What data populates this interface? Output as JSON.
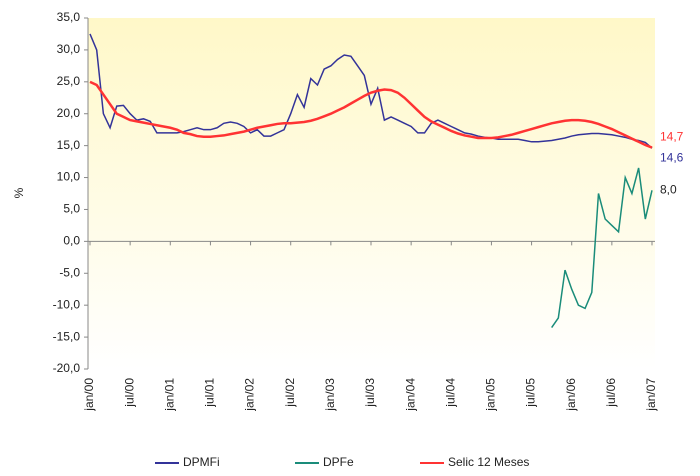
{
  "chart_data": {
    "type": "line",
    "y_label": "%",
    "categories": [
      "jan/00",
      null,
      null,
      null,
      null,
      null,
      "jul/00",
      null,
      null,
      null,
      null,
      null,
      "jan/01",
      null,
      null,
      null,
      null,
      null,
      "jul/01",
      null,
      null,
      null,
      null,
      null,
      "jan/02",
      null,
      null,
      null,
      null,
      null,
      "jul/02",
      null,
      null,
      null,
      null,
      null,
      "jan/03",
      null,
      null,
      null,
      null,
      null,
      "jul/03",
      null,
      null,
      null,
      null,
      null,
      "jan/04",
      null,
      null,
      null,
      null,
      null,
      "jul/04",
      null,
      null,
      null,
      null,
      null,
      "jan/05",
      null,
      null,
      null,
      null,
      null,
      "jul/05",
      null,
      null,
      null,
      null,
      null,
      "jan/06",
      null,
      null,
      null,
      null,
      null,
      "jul/06",
      null,
      null,
      null,
      null,
      null,
      "jan/07"
    ],
    "series": [
      {
        "name": "DPMFi",
        "color": "#333399",
        "values": [
          32.5,
          30,
          20,
          17.8,
          21.2,
          21.3,
          20,
          19,
          19.2,
          18.8,
          17,
          17,
          17,
          17,
          17.2,
          17.5,
          17.8,
          17.5,
          17.5,
          17.8,
          18.5,
          18.7,
          18.5,
          18,
          17,
          17.5,
          16.5,
          16.5,
          17,
          17.5,
          20,
          23,
          21,
          25.5,
          24.5,
          27,
          27.5,
          28.5,
          29.2,
          29,
          27.5,
          26,
          21.5,
          24,
          19,
          19.5,
          19,
          18.5,
          18,
          17,
          17,
          18.5,
          19,
          18.5,
          18,
          17.5,
          17,
          16.8,
          16.5,
          16.3,
          16.2,
          16,
          16,
          16,
          16,
          15.8,
          15.6,
          15.6,
          15.7,
          15.8,
          16,
          16.2,
          16.5,
          16.7,
          16.8,
          16.9,
          16.9,
          16.8,
          16.7,
          16.5,
          16.3,
          16,
          15.8,
          15.5,
          14.6
        ],
        "value_labels": [
          null,
          null,
          null,
          null,
          null,
          null,
          null,
          null,
          null,
          null,
          null,
          null,
          null,
          null,
          null,
          null,
          null,
          null,
          null,
          null,
          null,
          null,
          null,
          null,
          null,
          null,
          null,
          null,
          null,
          null,
          null,
          null,
          null,
          null,
          null,
          null,
          null,
          null,
          null,
          null,
          null,
          null,
          null,
          null,
          null,
          null,
          null,
          null,
          null,
          null,
          null,
          null,
          null,
          null,
          null,
          null,
          null,
          null,
          null,
          null,
          null,
          null,
          null,
          null,
          null,
          null,
          null,
          null,
          null,
          null,
          null,
          null,
          null,
          null,
          null,
          null,
          null,
          null,
          null,
          null,
          null,
          null,
          null,
          null,
          "14,6"
        ]
      },
      {
        "name": "DPFe",
        "color": "#1a8c7a",
        "values": [
          null,
          null,
          null,
          null,
          null,
          null,
          null,
          null,
          null,
          null,
          null,
          null,
          null,
          null,
          null,
          null,
          null,
          null,
          null,
          null,
          null,
          null,
          null,
          null,
          null,
          null,
          null,
          null,
          null,
          null,
          null,
          null,
          null,
          null,
          null,
          null,
          null,
          null,
          null,
          null,
          null,
          null,
          null,
          null,
          null,
          null,
          null,
          null,
          null,
          null,
          null,
          null,
          null,
          null,
          null,
          null,
          null,
          null,
          null,
          null,
          null,
          null,
          null,
          null,
          null,
          null,
          null,
          null,
          null,
          -13.5,
          -12,
          -4.5,
          -7.5,
          -10,
          -10.5,
          -8,
          7.5,
          3.5,
          2.5,
          1.5,
          10,
          7.5,
          11.5,
          3.5,
          8
        ],
        "value_labels": [
          null,
          null,
          null,
          null,
          null,
          null,
          null,
          null,
          null,
          null,
          null,
          null,
          null,
          null,
          null,
          null,
          null,
          null,
          null,
          null,
          null,
          null,
          null,
          null,
          null,
          null,
          null,
          null,
          null,
          null,
          null,
          null,
          null,
          null,
          null,
          null,
          null,
          null,
          null,
          null,
          null,
          null,
          null,
          null,
          null,
          null,
          null,
          null,
          null,
          null,
          null,
          null,
          null,
          null,
          null,
          null,
          null,
          null,
          null,
          null,
          null,
          null,
          null,
          null,
          null,
          null,
          null,
          null,
          null,
          null,
          null,
          null,
          null,
          null,
          null,
          null,
          null,
          null,
          null,
          null,
          null,
          null,
          null,
          null,
          "8,0"
        ]
      },
      {
        "name": "Selic 12 Meses",
        "color": "#ff3333",
        "values": [
          25,
          24.5,
          23,
          21.5,
          20,
          19.5,
          19,
          18.8,
          18.6,
          18.4,
          18.2,
          18,
          17.8,
          17.5,
          17,
          16.8,
          16.5,
          16.4,
          16.4,
          16.5,
          16.6,
          16.8,
          17,
          17.2,
          17.5,
          17.8,
          18,
          18.2,
          18.4,
          18.5,
          18.5,
          18.6,
          18.7,
          18.9,
          19.2,
          19.6,
          20,
          20.5,
          21,
          21.6,
          22.2,
          22.8,
          23.3,
          23.6,
          23.8,
          23.7,
          23.3,
          22.5,
          21.5,
          20.5,
          19.5,
          18.8,
          18.3,
          17.8,
          17.3,
          16.9,
          16.6,
          16.4,
          16.2,
          16.2,
          16.2,
          16.3,
          16.5,
          16.7,
          17,
          17.3,
          17.6,
          17.9,
          18.2,
          18.5,
          18.7,
          18.9,
          19,
          19,
          18.9,
          18.7,
          18.4,
          18,
          17.6,
          17.1,
          16.6,
          16.1,
          15.6,
          15.1,
          14.7
        ],
        "value_labels": [
          null,
          null,
          null,
          null,
          null,
          null,
          null,
          null,
          null,
          null,
          null,
          null,
          null,
          null,
          null,
          null,
          null,
          null,
          null,
          null,
          null,
          null,
          null,
          null,
          null,
          null,
          null,
          null,
          null,
          null,
          null,
          null,
          null,
          null,
          null,
          null,
          null,
          null,
          null,
          null,
          null,
          null,
          null,
          null,
          null,
          null,
          null,
          null,
          null,
          null,
          null,
          null,
          null,
          null,
          null,
          null,
          null,
          null,
          null,
          null,
          null,
          null,
          null,
          null,
          null,
          null,
          null,
          null,
          null,
          null,
          null,
          null,
          null,
          null,
          null,
          null,
          null,
          null,
          null,
          null,
          null,
          null,
          null,
          null,
          "14,7"
        ]
      }
    ],
    "ylim": [
      -20,
      35
    ],
    "yticks": [
      {
        "value": -20,
        "label": "-20,0"
      },
      {
        "value": -15,
        "label": "-15,0"
      },
      {
        "value": -10,
        "label": "-10,0"
      },
      {
        "value": -5,
        "label": "-5,0"
      },
      {
        "value": 0,
        "label": "0,0"
      },
      {
        "value": 5,
        "label": "5,0"
      },
      {
        "value": 10,
        "label": "10,0"
      },
      {
        "value": 15,
        "label": "15,0"
      },
      {
        "value": 20,
        "label": "20,0"
      },
      {
        "value": 25,
        "label": "25,0"
      },
      {
        "value": 30,
        "label": "30,0"
      },
      {
        "value": 35,
        "label": "35,0"
      }
    ],
    "legend": "bottom"
  }
}
